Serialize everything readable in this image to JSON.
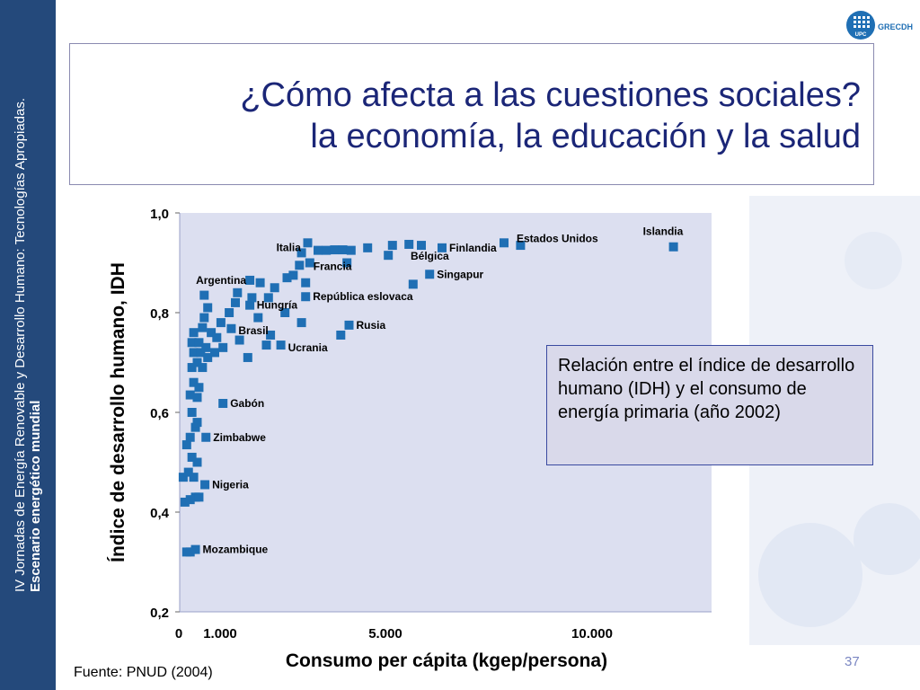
{
  "sidebar": {
    "line1": "IV Jornadas de Energía Renovable y Desarrollo Humano: Tecnologías Apropiadas.",
    "line2": "Escenario energético mundial"
  },
  "logo": {
    "text": "GRECDH",
    "badge": "UPC"
  },
  "title": {
    "line1": "¿Cómo afecta a las cuestiones sociales?",
    "line2": "la economía, la educación y la salud"
  },
  "note": "Relación entre el índice de desarrollo humano (IDH) y el consumo de energía primaria (año 2002)",
  "source": "Fuente: PNUD (2004)",
  "page_number": "37",
  "colors": {
    "sidebar": "#24497b",
    "title_text": "#1b2677",
    "plot_bg": "#dcdff0",
    "marker": "#1f6fb4",
    "note_bg": "#d9d9ea"
  },
  "chart_data": {
    "type": "scatter",
    "xlabel": "Consumo per cápita (kgep/persona)",
    "ylabel": "Índice de desarrollo humano, IDH",
    "xlim": [
      0,
      12500
    ],
    "ylim": [
      0.2,
      1.0
    ],
    "x_ticks": [
      {
        "value": 0,
        "label": "0"
      },
      {
        "value": 1000,
        "label": "1.000"
      },
      {
        "value": 5000,
        "label": "5.000"
      },
      {
        "value": 10000,
        "label": "10.000"
      }
    ],
    "y_ticks": [
      {
        "value": 1.0,
        "label": "1,0"
      },
      {
        "value": 0.8,
        "label": "0,8"
      },
      {
        "value": 0.6,
        "label": "0,6"
      },
      {
        "value": 0.4,
        "label": "0,4"
      },
      {
        "value": 0.2,
        "label": "0,2"
      }
    ],
    "labeled_points": [
      {
        "name": "Islandia",
        "x": 12100,
        "y": 0.932
      },
      {
        "name": "Estados Unidos",
        "x": 8000,
        "y": 0.94
      },
      {
        "name": "Finlandia",
        "x": 6500,
        "y": 0.93
      },
      {
        "name": "Bélgica",
        "x": 6000,
        "y": 0.935
      },
      {
        "name": "Francia",
        "x": 4300,
        "y": 0.925
      },
      {
        "name": "Italia",
        "x": 3100,
        "y": 0.92
      },
      {
        "name": "Singapur",
        "x": 6200,
        "y": 0.877
      },
      {
        "name": "Argentina",
        "x": 1850,
        "y": 0.865
      },
      {
        "name": "Hungría",
        "x": 2450,
        "y": 0.85
      },
      {
        "name": "República eslovaca",
        "x": 3200,
        "y": 0.832
      },
      {
        "name": "Rusia",
        "x": 4250,
        "y": 0.775
      },
      {
        "name": "Brasil",
        "x": 1400,
        "y": 0.768
      },
      {
        "name": "Ucrania",
        "x": 2600,
        "y": 0.735
      },
      {
        "name": "Gabón",
        "x": 1200,
        "y": 0.618
      },
      {
        "name": "Zimbabwe",
        "x": 750,
        "y": 0.55
      },
      {
        "name": "Nigeria",
        "x": 720,
        "y": 0.455
      },
      {
        "name": "Mozambique",
        "x": 450,
        "y": 0.325
      }
    ],
    "other_points": [
      {
        "x": 200,
        "y": 0.32
      },
      {
        "x": 300,
        "y": 0.32
      },
      {
        "x": 150,
        "y": 0.42
      },
      {
        "x": 300,
        "y": 0.425
      },
      {
        "x": 450,
        "y": 0.43
      },
      {
        "x": 550,
        "y": 0.43
      },
      {
        "x": 100,
        "y": 0.47
      },
      {
        "x": 250,
        "y": 0.48
      },
      {
        "x": 400,
        "y": 0.47
      },
      {
        "x": 350,
        "y": 0.51
      },
      {
        "x": 500,
        "y": 0.5
      },
      {
        "x": 200,
        "y": 0.535
      },
      {
        "x": 300,
        "y": 0.55
      },
      {
        "x": 450,
        "y": 0.57
      },
      {
        "x": 350,
        "y": 0.6
      },
      {
        "x": 500,
        "y": 0.58
      },
      {
        "x": 300,
        "y": 0.635
      },
      {
        "x": 500,
        "y": 0.63
      },
      {
        "x": 400,
        "y": 0.66
      },
      {
        "x": 550,
        "y": 0.65
      },
      {
        "x": 350,
        "y": 0.69
      },
      {
        "x": 500,
        "y": 0.7
      },
      {
        "x": 650,
        "y": 0.69
      },
      {
        "x": 400,
        "y": 0.72
      },
      {
        "x": 600,
        "y": 0.72
      },
      {
        "x": 800,
        "y": 0.71
      },
      {
        "x": 350,
        "y": 0.74
      },
      {
        "x": 550,
        "y": 0.74
      },
      {
        "x": 750,
        "y": 0.73
      },
      {
        "x": 1000,
        "y": 0.72
      },
      {
        "x": 1200,
        "y": 0.73
      },
      {
        "x": 1800,
        "y": 0.71
      },
      {
        "x": 400,
        "y": 0.76
      },
      {
        "x": 650,
        "y": 0.77
      },
      {
        "x": 900,
        "y": 0.76
      },
      {
        "x": 1050,
        "y": 0.75
      },
      {
        "x": 1600,
        "y": 0.745
      },
      {
        "x": 700,
        "y": 0.79
      },
      {
        "x": 1150,
        "y": 0.78
      },
      {
        "x": 2050,
        "y": 0.79
      },
      {
        "x": 2350,
        "y": 0.755
      },
      {
        "x": 3100,
        "y": 0.78
      },
      {
        "x": 2250,
        "y": 0.735
      },
      {
        "x": 4050,
        "y": 0.755
      },
      {
        "x": 800,
        "y": 0.81
      },
      {
        "x": 1350,
        "y": 0.8
      },
      {
        "x": 1500,
        "y": 0.82
      },
      {
        "x": 1850,
        "y": 0.815
      },
      {
        "x": 2700,
        "y": 0.8
      },
      {
        "x": 700,
        "y": 0.835
      },
      {
        "x": 1550,
        "y": 0.84
      },
      {
        "x": 1900,
        "y": 0.83
      },
      {
        "x": 2300,
        "y": 0.83
      },
      {
        "x": 2100,
        "y": 0.86
      },
      {
        "x": 2750,
        "y": 0.87
      },
      {
        "x": 2900,
        "y": 0.875
      },
      {
        "x": 3200,
        "y": 0.86
      },
      {
        "x": 3050,
        "y": 0.895
      },
      {
        "x": 3300,
        "y": 0.9
      },
      {
        "x": 4200,
        "y": 0.9
      },
      {
        "x": 5800,
        "y": 0.857
      },
      {
        "x": 3500,
        "y": 0.925
      },
      {
        "x": 3700,
        "y": 0.925
      },
      {
        "x": 3900,
        "y": 0.926
      },
      {
        "x": 4100,
        "y": 0.926
      },
      {
        "x": 4700,
        "y": 0.93
      },
      {
        "x": 5300,
        "y": 0.935
      },
      {
        "x": 5700,
        "y": 0.937
      },
      {
        "x": 5200,
        "y": 0.915
      },
      {
        "x": 8400,
        "y": 0.935
      },
      {
        "x": 3250,
        "y": 0.94
      }
    ]
  }
}
